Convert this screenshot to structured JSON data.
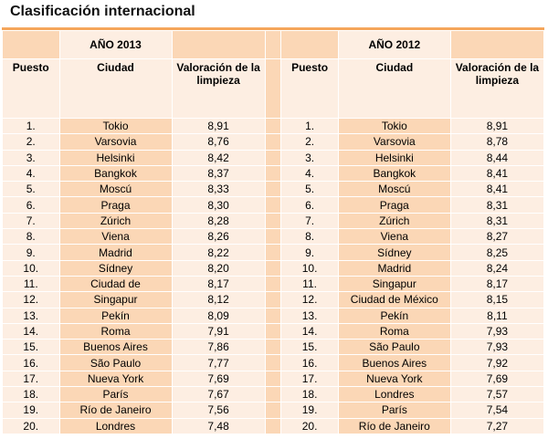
{
  "title": "Clasificación internacional",
  "left": {
    "year": "AÑO 2013",
    "headers": {
      "pos": "Puesto",
      "city": "Ciudad",
      "val": "Valoración de la limpieza"
    },
    "rows": [
      {
        "pos": "1.",
        "city": "Tokio",
        "val": "8,91"
      },
      {
        "pos": "2.",
        "city": "Varsovia",
        "val": "8,76"
      },
      {
        "pos": "3.",
        "city": "Helsinki",
        "val": "8,42"
      },
      {
        "pos": "4.",
        "city": "Bangkok",
        "val": "8,37"
      },
      {
        "pos": "5.",
        "city": "Moscú",
        "val": "8,33"
      },
      {
        "pos": "6.",
        "city": "Praga",
        "val": "8,30"
      },
      {
        "pos": "7.",
        "city": "Zúrich",
        "val": "8,28"
      },
      {
        "pos": "8.",
        "city": "Viena",
        "val": "8,26"
      },
      {
        "pos": "9.",
        "city": "Madrid",
        "val": "8,22"
      },
      {
        "pos": "10.",
        "city": "Sídney",
        "val": "8,20"
      },
      {
        "pos": "11.",
        "city": "Ciudad de",
        "val": "8,17"
      },
      {
        "pos": "12.",
        "city": "Singapur",
        "val": "8,12"
      },
      {
        "pos": "13.",
        "city": "Pekín",
        "val": "8,09"
      },
      {
        "pos": "14.",
        "city": "Roma",
        "val": "7,91"
      },
      {
        "pos": "15.",
        "city": "Buenos Aires",
        "val": "7,86"
      },
      {
        "pos": "16.",
        "city": "São Paulo",
        "val": "7,77"
      },
      {
        "pos": "17.",
        "city": "Nueva York",
        "val": "7,69"
      },
      {
        "pos": "18.",
        "city": "París",
        "val": "7,67"
      },
      {
        "pos": "19.",
        "city": "Río de Janeiro",
        "val": "7,56"
      },
      {
        "pos": "20.",
        "city": "Londres",
        "val": "7,48"
      }
    ]
  },
  "right": {
    "year": "AÑO 2012",
    "headers": {
      "pos": "Puesto",
      "city": "Ciudad",
      "val": "Valoración de la limpieza"
    },
    "rows": [
      {
        "pos": "1.",
        "city": "Tokio",
        "val": "8,91"
      },
      {
        "pos": "2.",
        "city": "Varsovia",
        "val": "8,78"
      },
      {
        "pos": "3.",
        "city": "Helsinki",
        "val": "8,44"
      },
      {
        "pos": "4.",
        "city": "Bangkok",
        "val": "8,41"
      },
      {
        "pos": "5.",
        "city": "Moscú",
        "val": "8,41"
      },
      {
        "pos": "6.",
        "city": "Praga",
        "val": "8,31"
      },
      {
        "pos": "7.",
        "city": "Zúrich",
        "val": "8,31"
      },
      {
        "pos": "8.",
        "city": "Viena",
        "val": "8,27"
      },
      {
        "pos": "9.",
        "city": "Sídney",
        "val": "8,25"
      },
      {
        "pos": "10.",
        "city": "Madrid",
        "val": "8,24"
      },
      {
        "pos": "11.",
        "city": "Singapur",
        "val": "8,17"
      },
      {
        "pos": "12.",
        "city": "Ciudad de México",
        "val": "8,15"
      },
      {
        "pos": "13.",
        "city": "Pekín",
        "val": "8,11"
      },
      {
        "pos": "14.",
        "city": "Roma",
        "val": "7,93"
      },
      {
        "pos": "15.",
        "city": "São Paulo",
        "val": "7,93"
      },
      {
        "pos": "16.",
        "city": "Buenos Aires",
        "val": "7,92"
      },
      {
        "pos": "17.",
        "city": "Nueva York",
        "val": "7,69"
      },
      {
        "pos": "18.",
        "city": "Londres",
        "val": "7,57"
      },
      {
        "pos": "19.",
        "city": "París",
        "val": "7,54"
      },
      {
        "pos": "20.",
        "city": "Río de Janeiro",
        "val": "7,27"
      }
    ]
  },
  "colors": {
    "accent": "#f5a65b",
    "cell_dark": "#fbd7b6",
    "cell_light": "#fdeee2"
  }
}
